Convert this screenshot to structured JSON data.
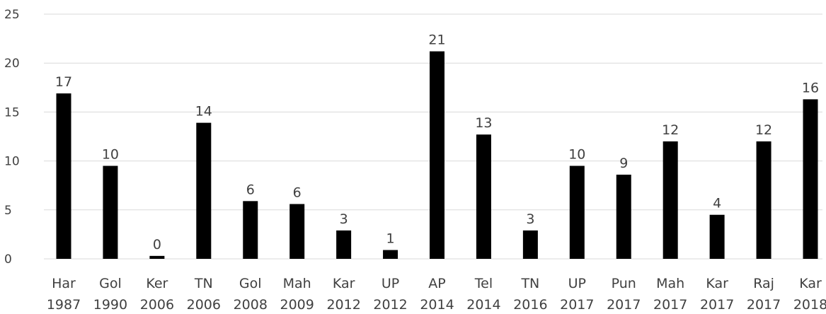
{
  "chart_data": {
    "type": "bar",
    "categories": [
      [
        "Har",
        "1987"
      ],
      [
        "Gol",
        "1990"
      ],
      [
        "Ker",
        "2006"
      ],
      [
        "TN",
        "2006"
      ],
      [
        "Gol",
        "2008"
      ],
      [
        "Mah",
        "2009"
      ],
      [
        "Kar",
        "2012"
      ],
      [
        "UP",
        "2012"
      ],
      [
        "AP",
        "2014"
      ],
      [
        "Tel",
        "2014"
      ],
      [
        "TN",
        "2016"
      ],
      [
        "UP",
        "2017"
      ],
      [
        "Pun",
        "2017"
      ],
      [
        "Mah",
        "2017"
      ],
      [
        "Kar",
        "2017"
      ],
      [
        "Raj",
        "2017"
      ],
      [
        "Kar",
        "2018"
      ]
    ],
    "values": [
      16.9,
      9.5,
      0.3,
      13.9,
      5.9,
      5.6,
      2.9,
      0.9,
      21.2,
      12.7,
      2.9,
      9.5,
      8.6,
      12.0,
      4.5,
      12.0,
      16.3
    ],
    "data_labels": [
      "17",
      "10",
      "0",
      "14",
      "6",
      "6",
      "3",
      "1",
      "21",
      "13",
      "3",
      "10",
      "9",
      "12",
      "4",
      "12",
      "16"
    ],
    "yticks": [
      "0",
      "5",
      "10",
      "15",
      "20",
      "25"
    ],
    "ylim": [
      0,
      25
    ],
    "grid": true,
    "bar_color": "#000000",
    "grid_color": "#d9d9d9",
    "text_color": "#404040"
  }
}
